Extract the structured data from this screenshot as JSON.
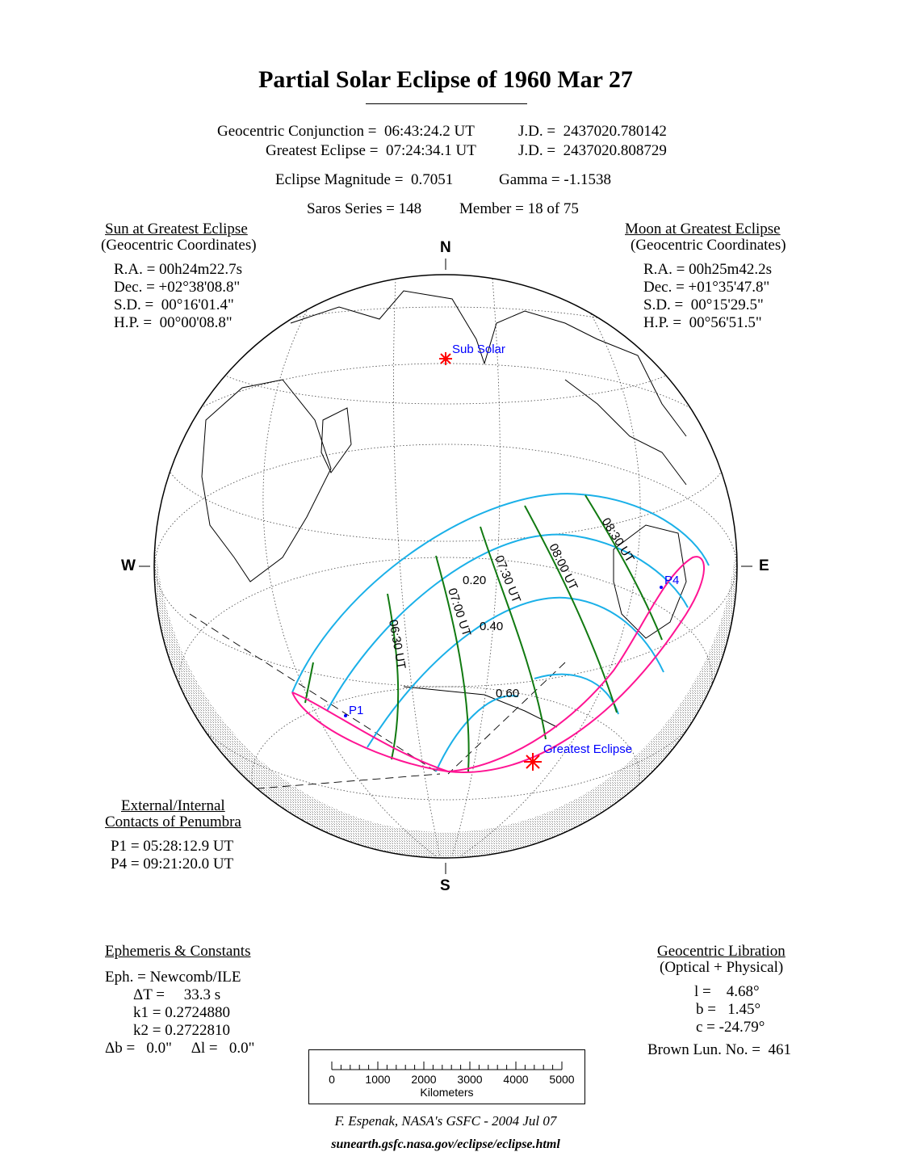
{
  "title": "Partial Solar Eclipse of  1960 Mar 27",
  "header": {
    "conjunction": "Geocentric Conjunction =  06:43:24.2 UT",
    "conjunction_jd": "J.D. =  2437020.780142",
    "greatest": "Greatest Eclipse =  07:24:34.1 UT",
    "greatest_jd": "J.D. =  2437020.808729",
    "magnitude": "Eclipse Magnitude =  0.7051",
    "gamma": "Gamma = -1.1538",
    "saros": "Saros Series = 148",
    "member": "Member = 18 of 75"
  },
  "sun": {
    "heading": "Sun at Greatest Eclipse",
    "sub": "(Geocentric Coordinates)",
    "ra": "R.A. = 00h24m22.7s",
    "dec": "Dec. = +02°38'08.8\"",
    "sd": "S.D. =  00°16'01.4\"",
    "hp": "H.P. =  00°00'08.8\""
  },
  "moon": {
    "heading": "Moon at Greatest Eclipse",
    "sub": "(Geocentric Coordinates)",
    "ra": "R.A. = 00h25m42.2s",
    "dec": "Dec. = +01°35'47.8\"",
    "sd": "S.D. =  00°15'29.5\"",
    "hp": "H.P. =  00°56'51.5\""
  },
  "directions": {
    "n": "N",
    "s": "S",
    "w": "W",
    "e": "E"
  },
  "map": {
    "sub_solar": "Sub Solar",
    "greatest_eclipse": "Greatest Eclipse",
    "p1": "P1",
    "p4": "P4",
    "magnitudes": [
      "0.20",
      "0.40",
      "0.60"
    ],
    "times": [
      "06:30 UT",
      "07:00 UT",
      "07:30 UT",
      "08:00 UT",
      "08:30 UT"
    ],
    "colors": {
      "penumbra_limits": "#ff1493",
      "magnitude_curves": "#00aaee",
      "time_curves": "#008000",
      "marker": "#ff0000",
      "label": "#0000ff"
    }
  },
  "contacts": {
    "heading1": "External/Internal",
    "heading2": "Contacts of Penumbra",
    "p1": "P1 = 05:28:12.9 UT",
    "p4": "P4 = 09:21:20.0 UT"
  },
  "ephemeris": {
    "heading": "Ephemeris & Constants",
    "eph": "Eph. = Newcomb/ILE",
    "dt": "ΔT =     33.3 s",
    "k1": "k1 = 0.2724880",
    "k2": "k2 = 0.2722810",
    "db": "Δb =   0.0\"     Δl =   0.0\""
  },
  "libration": {
    "heading": "Geocentric Libration",
    "sub": "(Optical + Physical)",
    "l": "l =    4.68°",
    "b": "b =   1.45°",
    "c": "c = -24.79°",
    "brown": "Brown Lun. No. =  461"
  },
  "scale": {
    "ticks": [
      "0",
      "1000",
      "2000",
      "3000",
      "4000",
      "5000"
    ],
    "unit": "Kilometers"
  },
  "footer": {
    "credit": "F. Espenak, NASA's GSFC -  2004 Jul 07",
    "url": "sunearth.gsfc.nasa.gov/eclipse/eclipse.html"
  }
}
